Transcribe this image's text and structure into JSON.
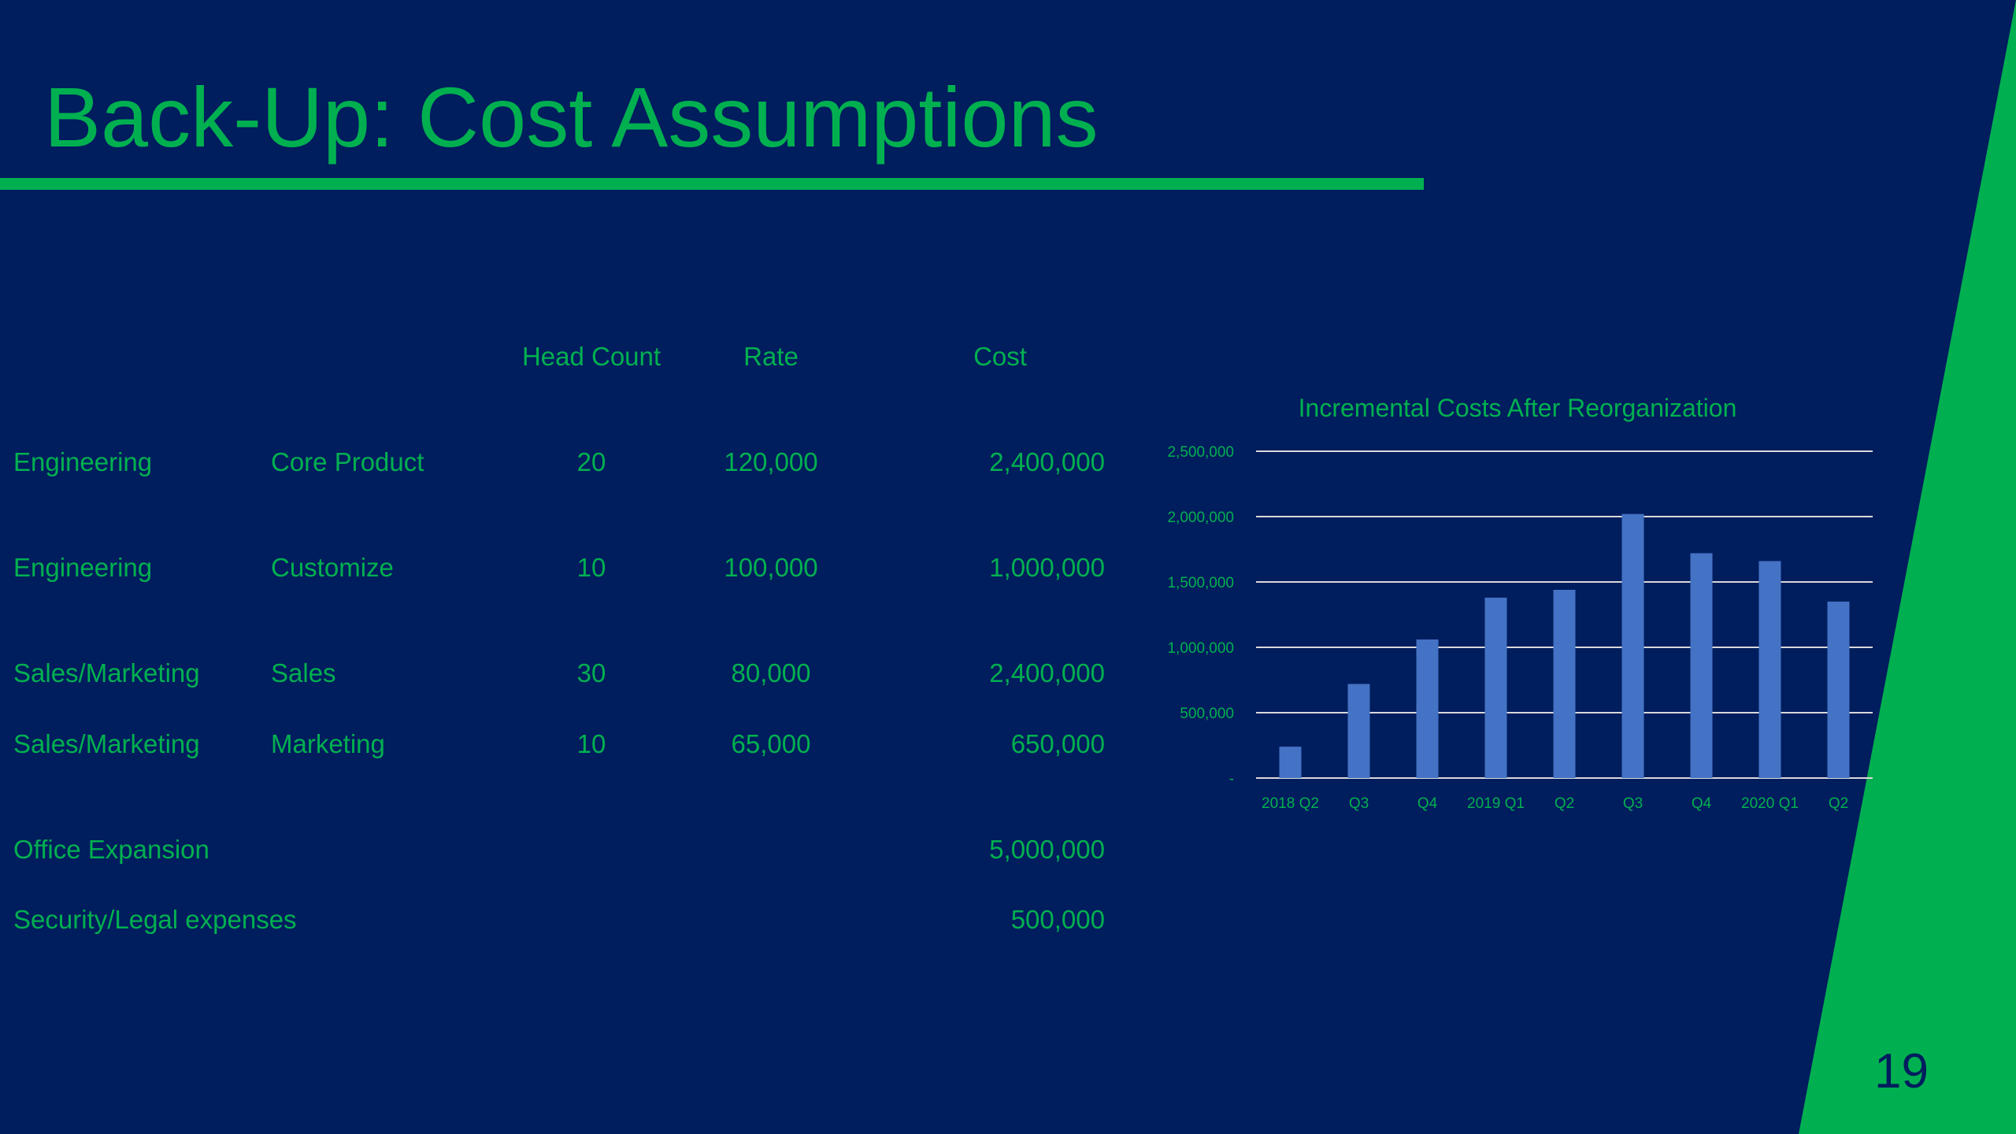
{
  "slide": {
    "title": "Back-Up: Cost Assumptions",
    "page_number": "19",
    "colors": {
      "background": "#001D5E",
      "accent": "#00B050",
      "bar": "#4472C4",
      "gridline": "#D9D9D9"
    }
  },
  "table": {
    "headers": {
      "head_count": "Head Count",
      "rate": "Rate",
      "cost": "Cost"
    },
    "rows": [
      {
        "dept": "Engineering",
        "role": "Core Product",
        "head_count": "20",
        "rate": "120,000",
        "cost": "2,400,000"
      },
      {
        "dept": "Engineering",
        "role": "Customize",
        "head_count": "10",
        "rate": "100,000",
        "cost": "1,000,000"
      },
      {
        "dept": "Sales/Marketing",
        "role": "Sales",
        "head_count": "30",
        "rate": "80,000",
        "cost": "2,400,000"
      },
      {
        "dept": "Sales/Marketing",
        "role": "Marketing",
        "head_count": "10",
        "rate": "65,000",
        "cost": "650,000"
      },
      {
        "dept": "Office Expansion",
        "role": "",
        "head_count": "",
        "rate": "",
        "cost": "5,000,000"
      },
      {
        "dept": "Security/Legal expenses",
        "role": "",
        "head_count": "",
        "rate": "",
        "cost": "500,000"
      }
    ]
  },
  "chart_data": {
    "type": "bar",
    "title": "Incremental Costs After Reorganization",
    "categories": [
      "2018 Q2",
      "Q3",
      "Q4",
      "2019 Q1",
      "Q2",
      "Q3",
      "Q4",
      "2020 Q1",
      "Q2"
    ],
    "values": [
      240000,
      720000,
      1060000,
      1380000,
      1440000,
      2020000,
      1720000,
      1660000,
      1350000
    ],
    "ylim": [
      0,
      2500000
    ],
    "yticks": [
      0,
      500000,
      1000000,
      1500000,
      2000000,
      2500000
    ],
    "ytick_labels": [
      "-",
      "500,000",
      "1,000,000",
      "1,500,000",
      "2,000,000",
      "2,500,000"
    ],
    "grid": true,
    "legend": "none"
  }
}
